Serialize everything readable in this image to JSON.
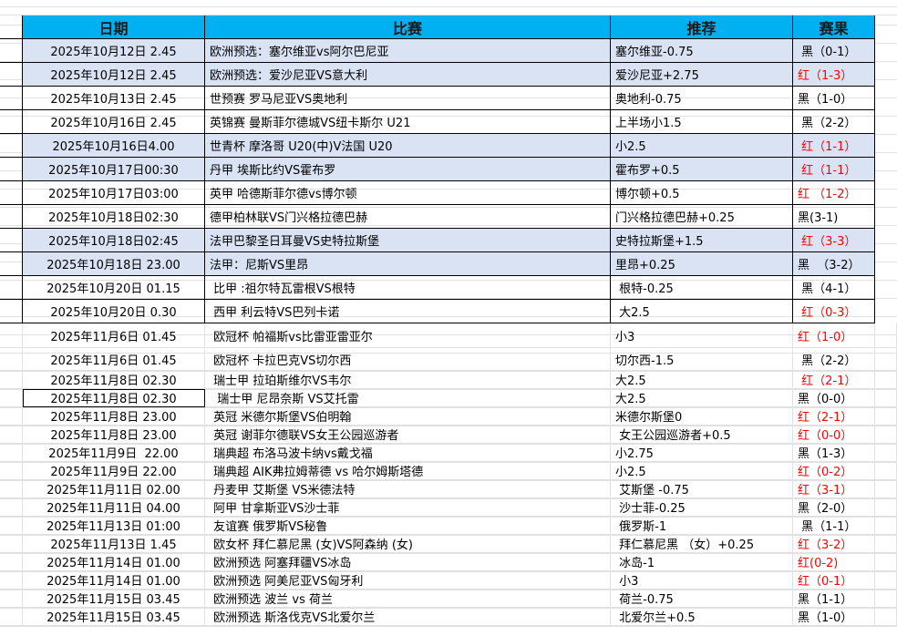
{
  "colors": {
    "header_bg": "#00b0f0",
    "highlight_bg": "#dae3f3",
    "red": "#ff0000",
    "black": "#000000"
  },
  "header": {
    "date": "日期",
    "match": "比赛",
    "recommend": "推荐",
    "result": "赛果"
  },
  "rows": [
    {
      "date": "2025年10月12日 2.45",
      "match": "欧洲预选：塞尔维亚vs阿尔巴尼亚",
      "recommend": "塞尔维亚-0.75",
      "result": " 黑（0-1）",
      "win": false,
      "highlight": true
    },
    {
      "date": "2025年10月12日 2.45",
      "match": "欧洲预选：爱沙尼亚VS意大利",
      "recommend": "爱沙尼亚+2.75",
      "result": "红（1-3）",
      "win": true,
      "highlight": true
    },
    {
      "date": "2025年10月13日 2.45",
      "match": "世预赛 罗马尼亚VS奥地利",
      "recommend": "奥地利-0.75",
      "result": "黑（1-0）",
      "win": false,
      "highlight": false
    },
    {
      "date": "2025年10月16日 2.45",
      "match": "英锦赛 曼斯菲尔德城VS纽卡斯尔 U21",
      "recommend": "上半场小1.5",
      "result": " 黑（2-2）",
      "win": false,
      "highlight": false
    },
    {
      "date": "2025年10月16日4.00",
      "match": "世青杯 摩洛哥 U20(中)V法国 U20",
      "recommend": "小2.5",
      "result": " 红（1-1）",
      "win": true,
      "highlight": true
    },
    {
      "date": "2025年10月17日00:30",
      "match": "丹甲 埃斯比约VS霍布罗",
      "recommend": "霍布罗+0.5",
      "result": " 红（1-1）",
      "win": true,
      "highlight": true
    },
    {
      "date": "2025年10月17日03:00",
      "match": "英甲 哈德斯菲尔德vs博尔顿",
      "recommend": "博尔顿+0.5",
      "result": "红 （1-2）",
      "win": true,
      "highlight": false
    },
    {
      "date": "2025年10月18日02:30",
      "match": "德甲柏林联VS门兴格拉德巴赫",
      "recommend": "门兴格拉德巴赫+0.25",
      "result": "黑(3-1)",
      "win": false,
      "highlight": false
    },
    {
      "date": "2025年10月18日02:45",
      "match": "法甲巴黎圣日耳曼VS史特拉斯堡",
      "recommend": "史特拉斯堡+1.5",
      "result": " 红（3-3）",
      "win": true,
      "highlight": true
    },
    {
      "date": "2025年10月18日 23.00",
      "match": "法甲：尼斯VS里昂",
      "recommend": "里昂+0.25",
      "result": "黑  （3-2）",
      "win": false,
      "highlight": true
    },
    {
      "date": "2025年10月20日 01.15",
      "match": " 比甲 :祖尔特瓦雷根VS根特",
      "recommend": " 根特-0.25",
      "result": " 黑（4-1）",
      "win": false,
      "highlight": false
    },
    {
      "date": "2025年10月20日 0.30",
      "match": " 西甲 利云特VS巴列卡诺",
      "recommend": " 大2.5",
      "result": " 红（0-3）",
      "win": true,
      "highlight": false
    },
    {
      "date": "2025年11月6日 01.45",
      "match": " 欧冠杯 帕福斯vs比雷亚雷亚尔",
      "recommend": "小3",
      "result": "红（1-0）",
      "win": true
    },
    {
      "date": "2025年11月6日 01.45",
      "match": " 欧冠杯 卡拉巴克VS切尔西",
      "recommend": "切尔西-1.5",
      "result": " 黑（2-2）",
      "win": false
    },
    {
      "date": "2025年11月8日 02.30",
      "match": " 瑞士甲 拉珀斯维尔VS韦尔",
      "recommend": "大2.5",
      "result": " 红（2-1）",
      "win": true
    },
    {
      "date": "2025年11月8日 02.30",
      "match": "  瑞士甲 尼昂奈斯 VS艾托雷",
      "recommend": "大2.5",
      "result": "黑（0-0）",
      "win": false,
      "boxed": true
    },
    {
      "date": "2025年11月8日 23.00",
      "match": " 英冠 米德尔斯堡VS伯明翰",
      "recommend": "米德尔斯堡0",
      "result": "红（2-1）",
      "win": true
    },
    {
      "date": "2025年11月8日 23.00",
      "match": " 英冠 谢菲尔德联VS女王公园巡游者",
      "recommend": " 女王公园巡游者+0.5",
      "result": "红（0-0）",
      "win": true
    },
    {
      "date": "2025年11月9日  22.00",
      "match": " 瑞典超 布洛马波卡纳vs戴戈福",
      "recommend": "小2.75",
      "result": "黑（1-3）",
      "win": false
    },
    {
      "date": "2025年11月9日 22.00",
      "match": " 瑞典超 AIK弗拉姆蒂德 vs 哈尔姆斯塔德",
      "recommend": "小2.5",
      "result": "红（0-2）",
      "win": true
    },
    {
      "date": "2025年11月11日 02.00",
      "match": " 丹麦甲 艾斯堡 VS米德法特",
      "recommend": " 艾斯堡 -0.75",
      "result": "红（3-1）",
      "win": true
    },
    {
      "date": "2025年11月11日 04.00",
      "match": " 阿甲 甘拿斯亚VS沙士菲",
      "recommend": " 沙士菲-0.25",
      "result": "黑（2-0）",
      "win": false
    },
    {
      "date": "2025年11月13日 01:00",
      "match": " 友谊赛 俄罗斯VS秘鲁",
      "recommend": " 俄罗斯-1",
      "result": " 黑（1-1）",
      "win": false
    },
    {
      "date": "2025年11月13日 1.45",
      "match": " 欧女杯 拜仁慕尼黑 (女)VS阿森纳 (女)",
      "recommend": " 拜仁慕尼黑 （女）+0.25",
      "result": "红（3-2）",
      "win": true
    },
    {
      "date": "2025年11月14日 01.00",
      "match": " 欧洲预选 阿塞拜疆VS冰岛",
      "recommend": " 冰岛-1",
      "result": "红(0-2)",
      "win": true
    },
    {
      "date": "2025年11月14日 01.00",
      "match": " 欧洲预选 阿美尼亚VS匈牙利",
      "recommend": " 小3",
      "result": "红（0-1）",
      "win": true
    },
    {
      "date": "2025年11月15日 03.45",
      "match": " 欧洲预选 波兰 vs 荷兰",
      "recommend": " 荷兰-0.75",
      "result": "黑（1-1）",
      "win": false
    },
    {
      "date": "2025年11月15日 03.45",
      "match": " 欧洲预选 斯洛伐克VS北爱尔兰",
      "recommend": " 北爱尔兰+0.5",
      "result": "黑（1-0）",
      "win": false
    }
  ]
}
